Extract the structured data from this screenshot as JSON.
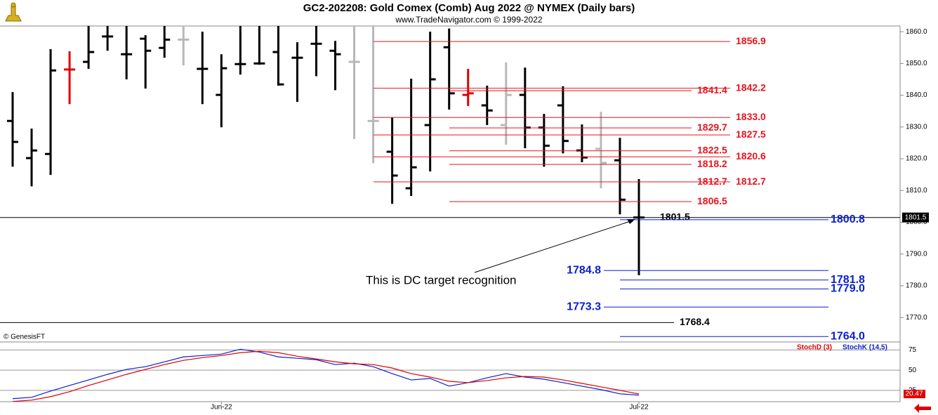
{
  "chart_data": [
    {
      "type": "ohlc",
      "title": "GC2-202208:  Gold Comex (Comb) Aug 2022 @ NYMEX  (Daily bars)",
      "subtitle": "www.TradeNavigator.com © 1999-2022",
      "source": "© GenesisFT",
      "annotation": "This is DC target recognition",
      "categories": [
        null,
        null,
        null,
        null,
        null,
        null,
        null,
        null,
        null,
        null,
        null,
        "Jun-22",
        null,
        null,
        null,
        null,
        null,
        null,
        null,
        null,
        null,
        null,
        null,
        null,
        null,
        null,
        null,
        null,
        null,
        null,
        null,
        null,
        null,
        "Jul-22"
      ],
      "open": [
        1831.9,
        1820.2,
        1821.5,
        1848.1,
        1850.5,
        1858.5,
        1852.9,
        1857.8,
        1854.9,
        1857.5,
        1848.3,
        1840.1,
        1849.8,
        1850.0,
        1853.6,
        1851.8,
        1856.2,
        1854.0,
        1850.5,
        1831.9,
        1822.2,
        1810.7,
        1830.6,
        1855.1,
        1840.1,
        1836.8,
        1830.6,
        1840.1,
        1829.8,
        1836.8,
        1822.6,
        1823.1,
        1819.5,
        1801.5
      ],
      "high": [
        1841.0,
        1829.5,
        1854.5,
        1853.8,
        1862.0,
        1862.0,
        1862.0,
        1858.9,
        1862.0,
        1862.0,
        1860.0,
        1852.9,
        1862.0,
        1862.0,
        1862.0,
        1856.7,
        1862.0,
        1857.1,
        1862.0,
        1862.0,
        1833.0,
        1845.2,
        1860.0,
        1861.0,
        1848.3,
        1843.0,
        1850.3,
        1848.7,
        1834.1,
        1842.8,
        1830.8,
        1834.8,
        1826.6,
        1813.6
      ],
      "low": [
        1817.5,
        1811.3,
        1814.9,
        1837.2,
        1848.3,
        1854.0,
        1845.0,
        1842.1,
        1851.8,
        1849.4,
        1837.2,
        1829.9,
        1846.5,
        1849.6,
        1843.0,
        1837.9,
        1846.0,
        1841.6,
        1826.2,
        1818.6,
        1805.8,
        1808.3,
        1816.0,
        1835.5,
        1836.6,
        1830.6,
        1824.4,
        1823.3,
        1817.5,
        1821.7,
        1818.9,
        1810.7,
        1802.5,
        1783.3
      ],
      "close": [
        1825.3,
        1822.6,
        1847.8,
        1848.1,
        1853.6,
        1858.5,
        1852.9,
        1854.0,
        1857.5,
        1857.5,
        1848.3,
        1848.5,
        1849.8,
        1850.0,
        1843.4,
        1851.8,
        1856.2,
        1852.9,
        1850.5,
        1831.9,
        1814.7,
        1817.3,
        1845.0,
        1840.6,
        1840.6,
        1835.2,
        1840.1,
        1829.8,
        1824.1,
        1825.6,
        1820.4,
        1818.7,
        1807.1,
        1801.5
      ],
      "colors": [
        "#000000",
        "#000000",
        "#000000",
        "#e00000",
        "#000000",
        "#000000",
        "#000000",
        "#000000",
        "#000000",
        "#b8b8b8",
        "#000000",
        "#000000",
        "#000000",
        "#000000",
        "#000000",
        "#000000",
        "#000000",
        "#000000",
        "#b8b8b8",
        "#b8b8b8",
        "#000000",
        "#000000",
        "#000000",
        "#000000",
        "#e00000",
        "#000000",
        "#b8b8b8",
        "#000000",
        "#000000",
        "#000000",
        "#000000",
        "#b8b8b8",
        "#000000",
        "#000000"
      ],
      "levels": [
        {
          "value": 1856.9,
          "label": "1856.9",
          "color": "#e8141e"
        },
        {
          "value": 1842.2,
          "label": "1842.2",
          "color": "#e8141e"
        },
        {
          "value": 1841.4,
          "label": "1841.4",
          "color": "#e8141e"
        },
        {
          "value": 1833,
          "label": "1833.0",
          "color": "#e8141e"
        },
        {
          "value": 1829.7,
          "label": "1829.7",
          "color": "#e8141e"
        },
        {
          "value": 1827.5,
          "label": "1827.5",
          "color": "#e8141e"
        },
        {
          "value": 1822.5,
          "label": "1822.5",
          "color": "#e8141e"
        },
        {
          "value": 1820.6,
          "label": "1820.6",
          "color": "#e8141e"
        },
        {
          "value": 1818.2,
          "label": "1818.2",
          "color": "#e8141e"
        },
        {
          "value": 1812.7,
          "label": "1812.7",
          "color": "#e8141e"
        },
        {
          "value": 1812.7,
          "label": "1812.7",
          "color": "#e8141e"
        },
        {
          "value": 1806.5,
          "label": "1806.5",
          "color": "#e8141e"
        },
        {
          "value": 1801.5,
          "label": "1801.5",
          "color": "#000000"
        },
        {
          "value": 1800.8,
          "label": "1800.8",
          "color": "#0a1fd0"
        },
        {
          "value": 1784.8,
          "label": "1784.8",
          "color": "#0a1fd0"
        },
        {
          "value": 1781.8,
          "label": "1781.8",
          "color": "#0a1fd0"
        },
        {
          "value": 1779,
          "label": "1779.0",
          "color": "#0a1fd0"
        },
        {
          "value": 1773.3,
          "label": "1773.3",
          "color": "#0a1fd0"
        },
        {
          "value": 1768.4,
          "label": "1768.4",
          "color": "#000000"
        },
        {
          "value": 1764,
          "label": "1764.0",
          "color": "#0a1fd0"
        }
      ],
      "ylim": [
        1762.3,
        1861.8
      ],
      "yticks": [
        {
          "value": 1770,
          "label": "1770.0"
        },
        {
          "value": 1780,
          "label": "1780.0"
        },
        {
          "value": 1790,
          "label": "1790.0"
        },
        {
          "value": 1800,
          "label": "1800.0"
        },
        {
          "value": 1810,
          "label": "1810.0"
        },
        {
          "value": 1820,
          "label": "1820.0"
        },
        {
          "value": 1830,
          "label": "1830.0"
        },
        {
          "value": 1840,
          "label": "1840.0"
        },
        {
          "value": 1850,
          "label": "1850.0"
        },
        {
          "value": 1860,
          "label": "1860.0"
        }
      ]
    },
    {
      "type": "line",
      "series": [
        {
          "name": "StochK (14,5)",
          "color": "#0a1fd0",
          "values": [
            14.7,
            16.4,
            24.1,
            31.0,
            37.9,
            44.8,
            50.9,
            54.3,
            60.3,
            66.4,
            68.1,
            69.8,
            75.9,
            72.4,
            66.4,
            64.7,
            62.9,
            56.9,
            58.6,
            54.3,
            45.7,
            37.9,
            39.7,
            30.2,
            34.5,
            40.5,
            45.7,
            41.4,
            38.8,
            34.5,
            30.2,
            25.9,
            20.7,
            19.0
          ]
        },
        {
          "name": "StochD (3)",
          "color": "#e00000",
          "values": [
            11.2,
            12.9,
            17.2,
            23.3,
            31.0,
            37.9,
            44.8,
            50.9,
            56.9,
            62.1,
            65.5,
            68.1,
            71.6,
            73.3,
            71.6,
            67.2,
            63.8,
            60.3,
            57.8,
            56.9,
            52.6,
            45.7,
            41.4,
            36.2,
            34.5,
            37.1,
            40.5,
            42.2,
            41.4,
            37.9,
            33.6,
            29.3,
            25.0,
            20.47
          ]
        }
      ],
      "ylim": [
        11,
        84
      ],
      "yticks": [
        25,
        50,
        75
      ]
    }
  ]
}
